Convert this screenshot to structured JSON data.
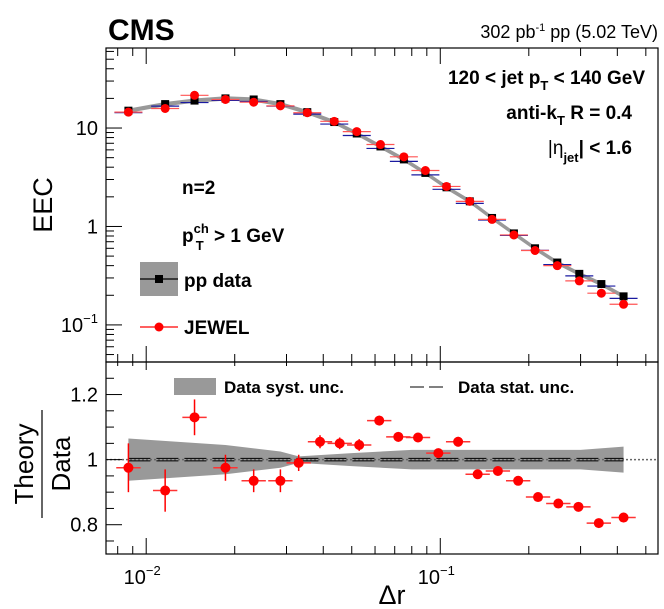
{
  "header": {
    "experiment": "CMS",
    "lumi_value": "302 pb",
    "lumi_exp": "-1",
    "lumi_rest": " pp (5.02 TeV)"
  },
  "chart_data": [
    {
      "panel": "upper",
      "type": "scatter",
      "title": "",
      "xlabel": "",
      "ylabel": "EEC",
      "xscale": "log",
      "yscale": "log",
      "xlim": [
        0.0073,
        0.55
      ],
      "ylim": [
        0.042,
        65
      ],
      "ytick_labels": [
        {
          "value": 10,
          "label": "10"
        },
        {
          "value": 1,
          "label": "1"
        },
        {
          "value": 0.1,
          "label": "10",
          "exp": "−1"
        }
      ],
      "annotations": {
        "jet_pt_line": [
          "120 < jet p",
          "T",
          " < 140 GeV"
        ],
        "algo_line": [
          "anti-k",
          "T",
          " R = 0.4"
        ],
        "eta_line": [
          "|η",
          "jet",
          "| < 1.6"
        ],
        "n_label": "n=2",
        "ptch_line": [
          "p",
          "ch",
          "T",
          " > 1 GeV"
        ]
      },
      "legend": {
        "position": "left-center",
        "entries": [
          {
            "label": "pp data",
            "marker": "square",
            "color": "#000000"
          },
          {
            "label": "JEWEL",
            "marker": "circle",
            "color": "#ff0000"
          }
        ]
      },
      "x": [
        0.0087,
        0.0116,
        0.0146,
        0.0186,
        0.0232,
        0.0286,
        0.0353,
        0.0436,
        0.052,
        0.0626,
        0.0752,
        0.089,
        0.105,
        0.126,
        0.15,
        0.178,
        0.21,
        0.25,
        0.297,
        0.353,
        0.42
      ],
      "series": [
        {
          "name": "pp data",
          "color": "#000000",
          "values": [
            15.0,
            17.5,
            19.0,
            20.0,
            19.5,
            17.5,
            14.5,
            11.5,
            8.8,
            6.5,
            4.8,
            3.5,
            2.5,
            1.8,
            1.22,
            0.85,
            0.6,
            0.43,
            0.33,
            0.26,
            0.195
          ]
        },
        {
          "name": "JEWEL",
          "color": "#ff0000",
          "values": [
            14.5,
            15.8,
            21.5,
            19.5,
            18.3,
            16.8,
            14.3,
            11.7,
            9.2,
            6.8,
            5.1,
            3.7,
            2.55,
            1.8,
            1.18,
            0.82,
            0.57,
            0.4,
            0.28,
            0.21,
            0.162
          ]
        }
      ],
      "syst_band": {
        "color": "#999999"
      }
    },
    {
      "panel": "lower",
      "type": "scatter",
      "title": "",
      "xlabel": "Δr",
      "ylabel_num": "Theory",
      "ylabel_den": "Data",
      "xscale": "log",
      "yscale": "linear",
      "xlim": [
        0.0073,
        0.55
      ],
      "ylim": [
        0.71,
        1.3
      ],
      "xtick_labels": [
        {
          "value": 0.01,
          "label": "10",
          "exp": "−2"
        },
        {
          "value": 0.1,
          "label": "10",
          "exp": "−1"
        }
      ],
      "ytick_labels": [
        {
          "value": 1.2,
          "label": "1.2"
        },
        {
          "value": 1.0,
          "label": "1"
        },
        {
          "value": 0.8,
          "label": "0.8"
        }
      ],
      "legend": {
        "position": "top",
        "entries": [
          {
            "label": "Data syst. unc.",
            "style": "band",
            "color": "#999999"
          },
          {
            "label": "Data stat. unc.",
            "style": "dashed",
            "color": "#000000"
          }
        ]
      },
      "reference_line": 1.0,
      "x": [
        0.0087,
        0.0116,
        0.0146,
        0.0186,
        0.0232,
        0.0286,
        0.033,
        0.039,
        0.0455,
        0.053,
        0.062,
        0.072,
        0.084,
        0.0985,
        0.115,
        0.134,
        0.157,
        0.184,
        0.215,
        0.252,
        0.295,
        0.346,
        0.42
      ],
      "ratio_values": [
        0.975,
        0.905,
        1.13,
        0.975,
        0.935,
        0.935,
        0.99,
        1.055,
        1.05,
        1.045,
        1.12,
        1.07,
        1.068,
        1.02,
        1.055,
        0.955,
        0.965,
        0.935,
        0.885,
        0.865,
        0.855,
        0.805,
        0.822
      ],
      "ratio_yerr": [
        0.075,
        0.065,
        0.055,
        0.04,
        0.035,
        0.035,
        0.025,
        0.02,
        0.018,
        0.018,
        0.015,
        0.015,
        0.012,
        0.012,
        0.015,
        0.012,
        0.012,
        0.012,
        0.012,
        0.012,
        0.012,
        0.012,
        0.015
      ],
      "syst_band_x": [
        0.0087,
        0.0186,
        0.0286,
        0.033,
        0.05,
        0.08,
        0.13,
        0.2,
        0.3,
        0.42
      ],
      "syst_band_halfwidth": [
        0.065,
        0.045,
        0.025,
        0.01,
        0.02,
        0.03,
        0.03,
        0.03,
        0.03,
        0.04
      ]
    }
  ]
}
